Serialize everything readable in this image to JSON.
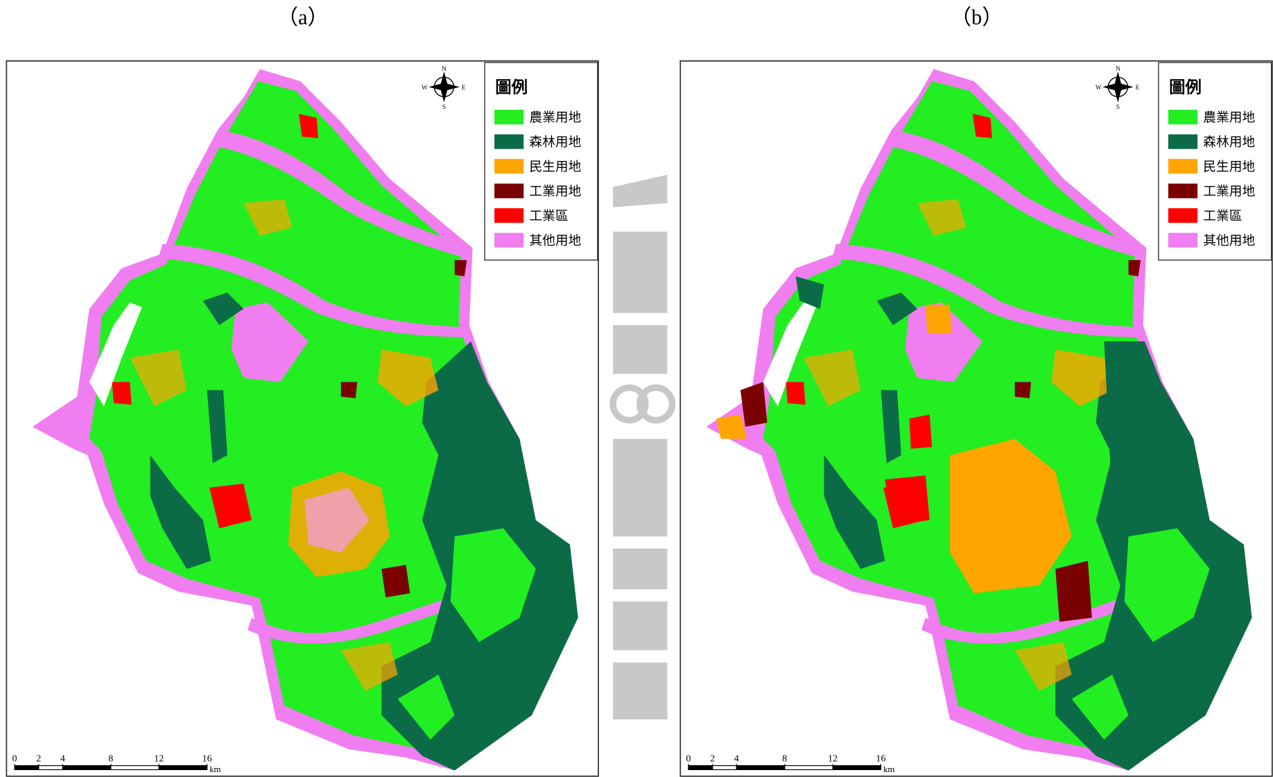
{
  "panels": [
    {
      "label": "（a）",
      "legend": {
        "title": "圖例",
        "items": [
          {
            "label": "農業用地",
            "color": "#22ee22"
          },
          {
            "label": "森林用地",
            "color": "#0b6b47"
          },
          {
            "label": "民生用地",
            "color": "#ffa500"
          },
          {
            "label": "工業用地",
            "color": "#7a0000"
          },
          {
            "label": "工業區",
            "color": "#ff0000"
          },
          {
            "label": "其他用地",
            "color": "#f07ef0"
          }
        ]
      },
      "compass": {
        "n": "N",
        "e": "E",
        "s": "S",
        "w": "W"
      },
      "scale_bar": {
        "ticks": [
          0,
          2,
          4,
          8,
          12,
          16
        ],
        "unit": "km"
      }
    },
    {
      "label": "（b）",
      "legend": {
        "title": "圖例",
        "items": [
          {
            "label": "農業用地",
            "color": "#22ee22"
          },
          {
            "label": "森林用地",
            "color": "#0b6b47"
          },
          {
            "label": "民生用地",
            "color": "#ffa500"
          },
          {
            "label": "工業用地",
            "color": "#7a0000"
          },
          {
            "label": "工業區",
            "color": "#ff0000"
          },
          {
            "label": "其他用地",
            "color": "#f07ef0"
          }
        ]
      },
      "compass": {
        "n": "N",
        "e": "E",
        "s": "S",
        "w": "W"
      },
      "scale_bar": {
        "ticks": [
          0,
          2,
          4,
          8,
          12,
          16
        ],
        "unit": "km"
      }
    }
  ]
}
